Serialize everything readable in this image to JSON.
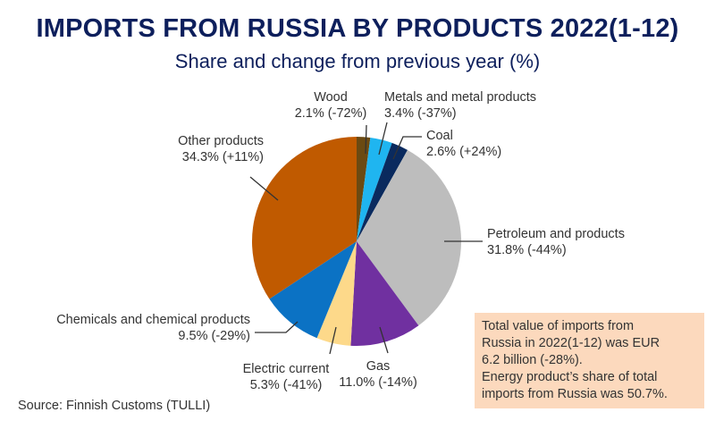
{
  "chart_data": {
    "type": "pie",
    "title": "IMPORTS FROM RUSSIA BY PRODUCTS 2022(1-12)",
    "subtitle": "Share and change from previous year (%)",
    "start": "top, clockwise",
    "slices": [
      {
        "name": "Wood",
        "value": 2.1,
        "label": "2.1% (-72%)",
        "change": -72,
        "color": "#6b4a12"
      },
      {
        "name": "Metals and metal products",
        "value": 3.4,
        "label": "3.4% (-37%)",
        "change": -37,
        "color": "#1fb5f0"
      },
      {
        "name": "Coal",
        "value": 2.6,
        "label": "2.6% (+24%)",
        "change": 24,
        "color": "#0a2a5e"
      },
      {
        "name": "Petroleum and products",
        "value": 31.8,
        "label": "31.8% (-44%)",
        "change": -44,
        "color": "#bdbdbd"
      },
      {
        "name": "Gas",
        "value": 11.0,
        "label": "11.0% (-14%)",
        "change": -14,
        "color": "#7030a0"
      },
      {
        "name": "Electric current",
        "value": 5.3,
        "label": "5.3% (-41%)",
        "change": -41,
        "color": "#fdd98a"
      },
      {
        "name": "Chemicals and chemical products",
        "value": 9.5,
        "label": "9.5% (-29%)",
        "change": -29,
        "color": "#0b72c4"
      },
      {
        "name": "Other products",
        "value": 34.3,
        "label": "34.3% (+11%)",
        "change": 11,
        "color": "#c05a00"
      }
    ]
  },
  "note": {
    "lines": [
      "Total value of imports from",
      "Russia in 2022(1-12) was EUR",
      "6.2 billion (-28%).",
      "Energy product’s share of total",
      "imports from Russia was 50.7%."
    ]
  },
  "source": "Source: Finnish Customs (TULLI)"
}
